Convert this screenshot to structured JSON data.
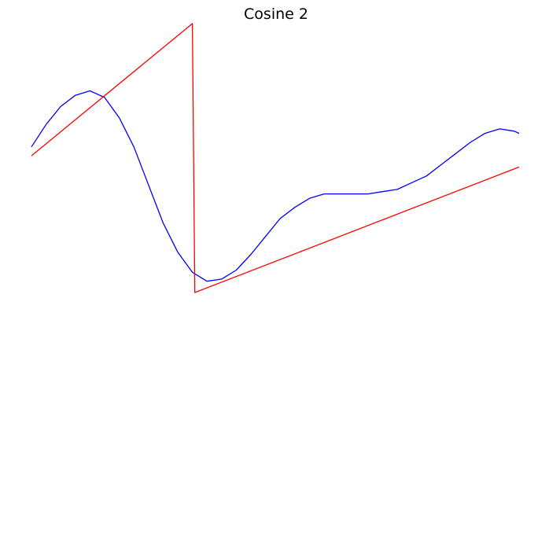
{
  "chart_data": {
    "type": "line",
    "title": "Cosine 2",
    "xlabel": "",
    "ylabel": "",
    "axes_visible": false,
    "grid": false,
    "xlim": [
      0,
      1
    ],
    "ylim": [
      -1,
      1
    ],
    "series": [
      {
        "color": "#0000ff",
        "x": [
          0,
          0.03,
          0.06,
          0.09,
          0.12,
          0.15,
          0.18,
          0.21,
          0.24,
          0.27,
          0.3,
          0.33,
          0.36,
          0.39,
          0.42,
          0.45,
          0.48,
          0.51,
          0.54,
          0.57,
          0.6,
          0.63,
          0.66,
          0.69,
          0.72,
          0.75,
          0.78,
          0.81,
          0.84,
          0.87,
          0.9,
          0.93,
          0.96,
          0.99,
          1.0
        ],
        "y": [
          0.11,
          0.21,
          0.29,
          0.34,
          0.36,
          0.33,
          0.24,
          0.11,
          -0.06,
          -0.23,
          -0.36,
          -0.45,
          -0.49,
          -0.48,
          -0.44,
          -0.37,
          -0.29,
          -0.21,
          -0.16,
          -0.12,
          -0.1,
          -0.1,
          -0.1,
          -0.1,
          -0.09,
          -0.08,
          -0.05,
          -0.02,
          0.03,
          0.08,
          0.13,
          0.17,
          0.19,
          0.18,
          0.17
        ]
      },
      {
        "color": "#ff0000",
        "x": [
          0,
          0.33,
          0.335,
          1.0
        ],
        "y": [
          0.07,
          0.66,
          -0.54,
          0.02
        ]
      }
    ]
  }
}
